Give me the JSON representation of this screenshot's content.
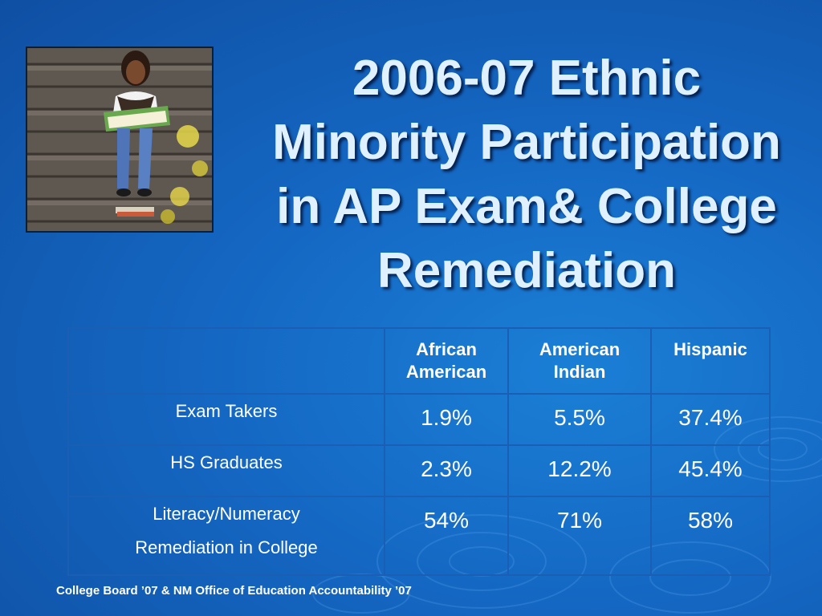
{
  "title_lines": [
    "2006-07 Ethnic",
    "Minority Participation",
    "in AP Exam& College",
    "Remediation"
  ],
  "table": {
    "columns": [
      "",
      "African American",
      "American Indian",
      "Hispanic"
    ],
    "column_lines": {
      "african": [
        "African",
        "American"
      ],
      "indian": [
        "American",
        "Indian"
      ],
      "hispanic": [
        "Hispanic"
      ]
    },
    "rows": [
      {
        "label": "Exam Takers",
        "values": [
          "1.9%",
          "5.5%",
          "37.4%"
        ]
      },
      {
        "label": "HS Graduates",
        "values": [
          "2.3%",
          "12.2%",
          "45.4%"
        ]
      },
      {
        "label_lines": [
          "Literacy/Numeracy",
          "Remediation in College"
        ],
        "values": [
          "54%",
          "71%",
          "58%"
        ]
      }
    ]
  },
  "footer": "College Board ’07 & NM Office of Education Accountability ’07",
  "colors": {
    "background": "#1467c2",
    "title": "#dff0ff",
    "table_text": "#ffffff"
  }
}
